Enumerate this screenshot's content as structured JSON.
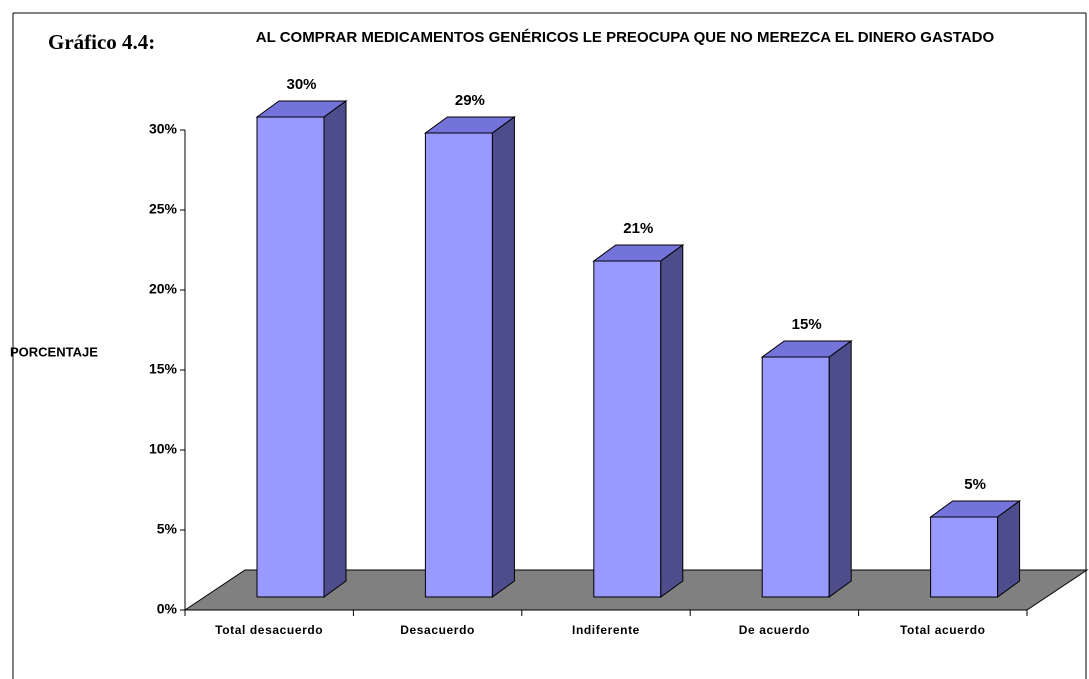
{
  "chart_data": {
    "type": "bar3d",
    "figure_label": "Gráfico 4.4:",
    "title": "AL COMPRAR MEDICAMENTOS GENÉRICOS LE PREOCUPA QUE NO MEREZCA EL DINERO GASTADO",
    "y_label": "PORCENTAJE",
    "categories": [
      "Total desacuerdo",
      "Desacuerdo",
      "Indiferente",
      "De acuerdo",
      "Total acuerdo"
    ],
    "values": [
      30,
      29,
      21,
      15,
      5
    ],
    "value_labels": [
      "30%",
      "29%",
      "21%",
      "15%",
      "5%"
    ],
    "color": "#9999ff",
    "ylim": [
      0,
      30
    ],
    "yticks": [
      {
        "value": 0,
        "label": "0%"
      },
      {
        "value": 5,
        "label": "5%"
      },
      {
        "value": 10,
        "label": "10%"
      },
      {
        "value": 15,
        "label": "15%"
      },
      {
        "value": 20,
        "label": "20%"
      },
      {
        "value": 25,
        "label": "25%"
      },
      {
        "value": 30,
        "label": "30%"
      }
    ]
  }
}
